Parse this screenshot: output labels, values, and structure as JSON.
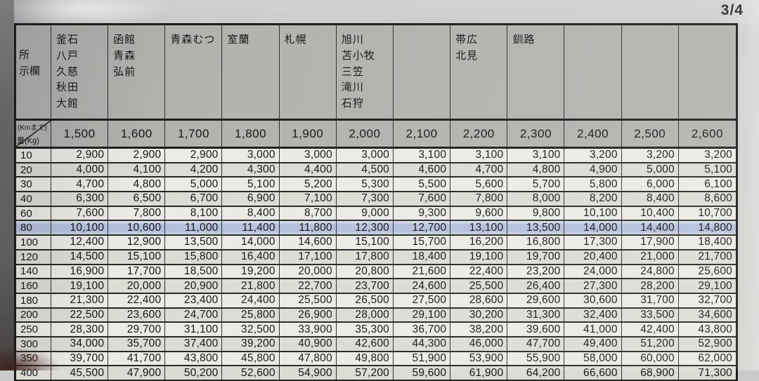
{
  "page": {
    "number_label": "3/4"
  },
  "colors": {
    "hdr_bg": "#b2b3af",
    "row_light": "#ebebe5",
    "row_dark": "#dcdcd5",
    "highlight": "#b4bfdd",
    "border": "#1a1a1a"
  },
  "table": {
    "corner": {
      "header_label": "所\n示欄",
      "distance_unit_label": "(Kmまで)",
      "weight_unit_label": "量(Kg)"
    },
    "city_columns": [
      "釜石\n八戸\n久慈\n秋田\n大館",
      "函館\n青森\n弘前",
      "青森むつ",
      "室蘭",
      "札幌",
      "旭川\n苫小牧\n三笠\n滝川\n石狩",
      "",
      "帯広\n北見",
      "釧路",
      "",
      "",
      ""
    ],
    "distances": [
      "1,500",
      "1,600",
      "1,700",
      "1,800",
      "1,900",
      "2,000",
      "2,100",
      "2,200",
      "2,300",
      "2,400",
      "2,500",
      "2,600"
    ],
    "rows": [
      {
        "weight": "10",
        "values": [
          "2,900",
          "2,900",
          "2,900",
          "3,000",
          "3,000",
          "3,000",
          "3,100",
          "3,100",
          "3,100",
          "3,200",
          "3,200",
          "3,200"
        ]
      },
      {
        "weight": "20",
        "values": [
          "4,000",
          "4,100",
          "4,200",
          "4,300",
          "4,400",
          "4,500",
          "4,600",
          "4,700",
          "4,800",
          "4,900",
          "5,000",
          "5,100"
        ]
      },
      {
        "weight": "30",
        "values": [
          "4,700",
          "4,800",
          "5,000",
          "5,100",
          "5,200",
          "5,300",
          "5,500",
          "5,600",
          "5,700",
          "5,800",
          "6,000",
          "6,100"
        ]
      },
      {
        "weight": "40",
        "values": [
          "6,300",
          "6,500",
          "6,700",
          "6,900",
          "7,100",
          "7,300",
          "7,600",
          "7,800",
          "8,000",
          "8,200",
          "8,400",
          "8,600"
        ]
      },
      {
        "weight": "60",
        "values": [
          "7,600",
          "7,800",
          "8,100",
          "8,400",
          "8,700",
          "9,000",
          "9,300",
          "9,600",
          "9,800",
          "10,100",
          "10,400",
          "10,700"
        ]
      },
      {
        "weight": "80",
        "highlight": true,
        "values": [
          "10,100",
          "10,600",
          "11,000",
          "11,400",
          "11,800",
          "12,300",
          "12,700",
          "13,100",
          "13,500",
          "14,000",
          "14,400",
          "14,800"
        ]
      },
      {
        "weight": "100",
        "values": [
          "12,400",
          "12,900",
          "13,500",
          "14,000",
          "14,600",
          "15,100",
          "15,700",
          "16,200",
          "16,800",
          "17,300",
          "17,900",
          "18,400"
        ]
      },
      {
        "weight": "120",
        "values": [
          "14,500",
          "15,100",
          "15,800",
          "16,400",
          "17,100",
          "17,800",
          "18,400",
          "19,100",
          "19,700",
          "20,400",
          "21,000",
          "21,700"
        ]
      },
      {
        "weight": "140",
        "values": [
          "16,900",
          "17,700",
          "18,500",
          "19,200",
          "20,000",
          "20,800",
          "21,600",
          "22,400",
          "23,200",
          "24,000",
          "24,800",
          "25,600"
        ]
      },
      {
        "weight": "160",
        "values": [
          "19,100",
          "20,000",
          "20,900",
          "21,800",
          "22,700",
          "23,700",
          "24,600",
          "25,500",
          "26,400",
          "27,300",
          "28,200",
          "29,100"
        ]
      },
      {
        "weight": "180",
        "values": [
          "21,300",
          "22,400",
          "23,400",
          "24,400",
          "25,500",
          "26,500",
          "27,500",
          "28,600",
          "29,600",
          "30,600",
          "31,700",
          "32,700"
        ]
      },
      {
        "weight": "200",
        "values": [
          "22,500",
          "23,600",
          "24,700",
          "25,800",
          "26,900",
          "28,000",
          "29,100",
          "30,200",
          "31,300",
          "32,400",
          "33,500",
          "34,600"
        ]
      },
      {
        "weight": "250",
        "values": [
          "28,300",
          "29,700",
          "31,100",
          "32,500",
          "33,900",
          "35,300",
          "36,700",
          "38,200",
          "39,600",
          "41,000",
          "42,400",
          "43,800"
        ]
      },
      {
        "weight": "300",
        "values": [
          "34,000",
          "35,700",
          "37,400",
          "39,200",
          "40,900",
          "42,600",
          "44,300",
          "46,000",
          "47,700",
          "49,400",
          "51,200",
          "52,900"
        ]
      },
      {
        "weight": "350",
        "values": [
          "39,700",
          "41,700",
          "43,800",
          "45,800",
          "47,800",
          "49,800",
          "51,900",
          "53,900",
          "55,900",
          "58,000",
          "60,000",
          "62,000"
        ]
      },
      {
        "weight": "400",
        "partial": true,
        "values": [
          "45,500",
          "47,900",
          "50,200",
          "52,600",
          "54,900",
          "57,200",
          "59,600",
          "61,900",
          "64,200",
          "66,600",
          "68,900",
          "71,300"
        ]
      }
    ]
  }
}
